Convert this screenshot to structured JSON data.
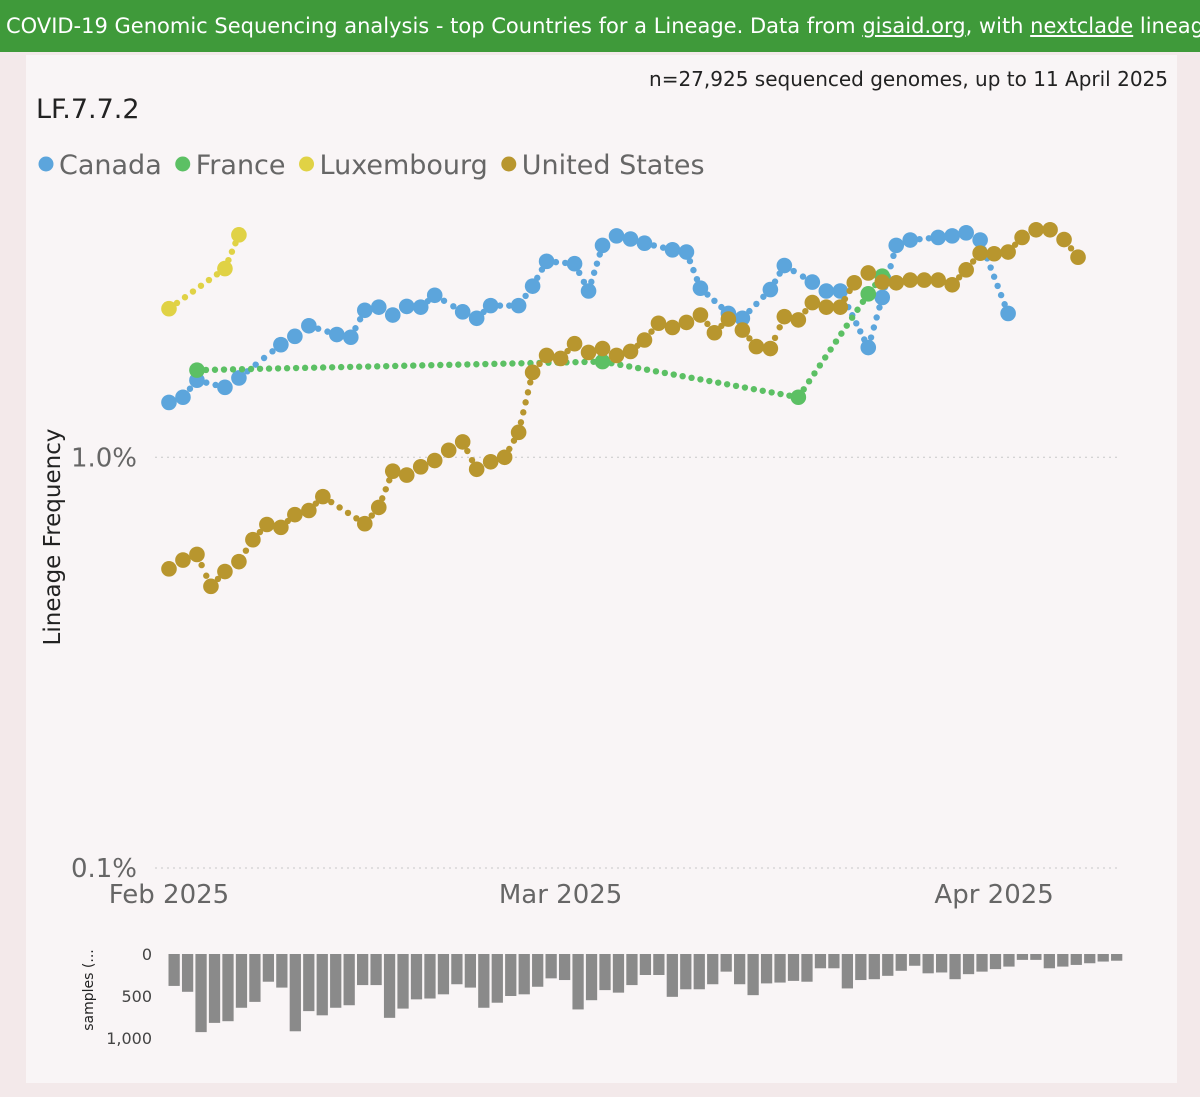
{
  "header": {
    "prefix": "COVID-19 Genomic Sequencing analysis - top Countries for a Lineage. Data from ",
    "link1": "gisaid.org",
    "middle": ", with ",
    "link2": "nextclade",
    "suffix": " lineages So"
  },
  "subtitle": "n=27,925 sequenced genomes, up to 11 April 2025",
  "lineage": "LF.7.7.2",
  "chart_data": [
    {
      "type": "line",
      "title": "LF.7.7.2",
      "ylabel": "Lineage Frequency",
      "yscale": "log",
      "ylim": [
        0.1,
        4.0
      ],
      "yticks": [
        {
          "value": 1.0,
          "label": "1.0%"
        },
        {
          "value": 0.1,
          "label": "0.1%"
        }
      ],
      "xlim": [
        "2025-01-31",
        "2025-04-10"
      ],
      "xticks": [
        {
          "value": "2025-02-01",
          "label": "Feb 2025"
        },
        {
          "value": "2025-03-01",
          "label": "Mar 2025"
        },
        {
          "value": "2025-04-01",
          "label": "Apr 2025"
        }
      ],
      "legend_position": "top-left",
      "grid": true,
      "series": [
        {
          "name": "Canada",
          "color": "#5ca5dc",
          "points": [
            [
              "2025-02-01",
              1.36
            ],
            [
              "2025-02-02",
              1.4
            ],
            [
              "2025-02-03",
              1.54
            ],
            [
              "2025-02-05",
              1.48
            ],
            [
              "2025-02-06",
              1.56
            ],
            [
              "2025-02-09",
              1.88
            ],
            [
              "2025-02-10",
              1.97
            ],
            [
              "2025-02-11",
              2.09
            ],
            [
              "2025-02-13",
              1.99
            ],
            [
              "2025-02-14",
              1.96
            ],
            [
              "2025-02-15",
              2.28
            ],
            [
              "2025-02-16",
              2.32
            ],
            [
              "2025-02-17",
              2.22
            ],
            [
              "2025-02-18",
              2.33
            ],
            [
              "2025-02-19",
              2.32
            ],
            [
              "2025-02-20",
              2.48
            ],
            [
              "2025-02-22",
              2.26
            ],
            [
              "2025-02-23",
              2.18
            ],
            [
              "2025-02-24",
              2.34
            ],
            [
              "2025-02-26",
              2.34
            ],
            [
              "2025-02-27",
              2.61
            ],
            [
              "2025-02-28",
              3.0
            ],
            [
              "2025-03-02",
              2.96
            ],
            [
              "2025-03-03",
              2.54
            ],
            [
              "2025-03-04",
              3.28
            ],
            [
              "2025-03-05",
              3.46
            ],
            [
              "2025-03-06",
              3.4
            ],
            [
              "2025-03-07",
              3.32
            ],
            [
              "2025-03-09",
              3.2
            ],
            [
              "2025-03-10",
              3.16
            ],
            [
              "2025-03-11",
              2.58
            ],
            [
              "2025-03-13",
              2.24
            ],
            [
              "2025-03-14",
              2.18
            ],
            [
              "2025-03-16",
              2.56
            ],
            [
              "2025-03-17",
              2.93
            ],
            [
              "2025-03-19",
              2.67
            ],
            [
              "2025-03-20",
              2.54
            ],
            [
              "2025-03-21",
              2.54
            ],
            [
              "2025-03-23",
              1.85
            ],
            [
              "2025-03-24",
              2.45
            ],
            [
              "2025-03-25",
              3.28
            ],
            [
              "2025-03-26",
              3.38
            ],
            [
              "2025-03-28",
              3.43
            ],
            [
              "2025-03-29",
              3.46
            ],
            [
              "2025-03-30",
              3.52
            ],
            [
              "2025-03-31",
              3.38
            ],
            [
              "2025-04-02",
              2.24
            ]
          ]
        },
        {
          "name": "France",
          "color": "#5cc064",
          "points": [
            [
              "2025-02-03",
              1.63
            ],
            [
              "2025-03-04",
              1.71
            ],
            [
              "2025-03-18",
              1.4
            ],
            [
              "2025-03-23",
              2.5
            ],
            [
              "2025-03-24",
              2.76
            ]
          ]
        },
        {
          "name": "Luxembourg",
          "color": "#e0d245",
          "points": [
            [
              "2025-02-01",
              2.3
            ],
            [
              "2025-02-05",
              2.88
            ],
            [
              "2025-02-06",
              3.48
            ]
          ]
        },
        {
          "name": "United States",
          "color": "#b8962e",
          "points": [
            [
              "2025-02-01",
              0.535
            ],
            [
              "2025-02-02",
              0.562
            ],
            [
              "2025-02-03",
              0.58
            ],
            [
              "2025-02-04",
              0.485
            ],
            [
              "2025-02-05",
              0.527
            ],
            [
              "2025-02-06",
              0.557
            ],
            [
              "2025-02-07",
              0.63
            ],
            [
              "2025-02-08",
              0.686
            ],
            [
              "2025-02-09",
              0.675
            ],
            [
              "2025-02-10",
              0.725
            ],
            [
              "2025-02-11",
              0.742
            ],
            [
              "2025-02-12",
              0.802
            ],
            [
              "2025-02-15",
              0.689
            ],
            [
              "2025-02-16",
              0.755
            ],
            [
              "2025-02-17",
              0.925
            ],
            [
              "2025-02-18",
              0.905
            ],
            [
              "2025-02-19",
              0.948
            ],
            [
              "2025-02-20",
              0.982
            ],
            [
              "2025-02-21",
              1.04
            ],
            [
              "2025-02-22",
              1.09
            ],
            [
              "2025-02-23",
              0.935
            ],
            [
              "2025-02-24",
              0.975
            ],
            [
              "2025-02-25",
              1.0
            ],
            [
              "2025-02-26",
              1.15
            ],
            [
              "2025-02-27",
              1.61
            ],
            [
              "2025-02-28",
              1.77
            ],
            [
              "2025-03-01",
              1.74
            ],
            [
              "2025-03-02",
              1.89
            ],
            [
              "2025-03-03",
              1.8
            ],
            [
              "2025-03-04",
              1.84
            ],
            [
              "2025-03-05",
              1.77
            ],
            [
              "2025-03-06",
              1.81
            ],
            [
              "2025-03-07",
              1.93
            ],
            [
              "2025-03-08",
              2.12
            ],
            [
              "2025-03-09",
              2.07
            ],
            [
              "2025-03-10",
              2.13
            ],
            [
              "2025-03-11",
              2.22
            ],
            [
              "2025-03-12",
              2.01
            ],
            [
              "2025-03-13",
              2.17
            ],
            [
              "2025-03-14",
              2.04
            ],
            [
              "2025-03-15",
              1.86
            ],
            [
              "2025-03-16",
              1.84
            ],
            [
              "2025-03-17",
              2.2
            ],
            [
              "2025-03-18",
              2.16
            ],
            [
              "2025-03-19",
              2.38
            ],
            [
              "2025-03-20",
              2.32
            ],
            [
              "2025-03-21",
              2.32
            ],
            [
              "2025-03-22",
              2.66
            ],
            [
              "2025-03-23",
              2.81
            ],
            [
              "2025-03-24",
              2.67
            ],
            [
              "2025-03-25",
              2.66
            ],
            [
              "2025-03-26",
              2.7
            ],
            [
              "2025-03-27",
              2.7
            ],
            [
              "2025-03-28",
              2.7
            ],
            [
              "2025-03-29",
              2.63
            ],
            [
              "2025-03-30",
              2.86
            ],
            [
              "2025-03-31",
              3.14
            ],
            [
              "2025-04-01",
              3.13
            ],
            [
              "2025-04-02",
              3.16
            ],
            [
              "2025-04-03",
              3.43
            ],
            [
              "2025-04-04",
              3.58
            ],
            [
              "2025-04-05",
              3.58
            ],
            [
              "2025-04-06",
              3.39
            ],
            [
              "2025-04-07",
              3.07
            ]
          ]
        }
      ]
    },
    {
      "type": "bar",
      "ylabel": "samples (...",
      "ylim": [
        0,
        1000
      ],
      "yreversed": true,
      "yticks": [
        {
          "value": 0,
          "label": "0"
        },
        {
          "value": 500,
          "label": "500"
        },
        {
          "value": 1000,
          "label": "1,000"
        }
      ],
      "color": "#8a8a8a",
      "values": [
        380,
        450,
        930,
        820,
        800,
        640,
        570,
        330,
        400,
        920,
        680,
        730,
        640,
        610,
        370,
        370,
        760,
        650,
        540,
        530,
        480,
        360,
        400,
        640,
        580,
        500,
        480,
        390,
        290,
        310,
        660,
        550,
        430,
        460,
        370,
        250,
        250,
        510,
        420,
        420,
        360,
        210,
        360,
        490,
        350,
        340,
        320,
        330,
        170,
        170,
        410,
        310,
        300,
        260,
        200,
        140,
        230,
        220,
        300,
        240,
        210,
        180,
        150,
        70,
        70,
        170,
        150,
        130,
        110,
        90,
        80
      ]
    }
  ]
}
